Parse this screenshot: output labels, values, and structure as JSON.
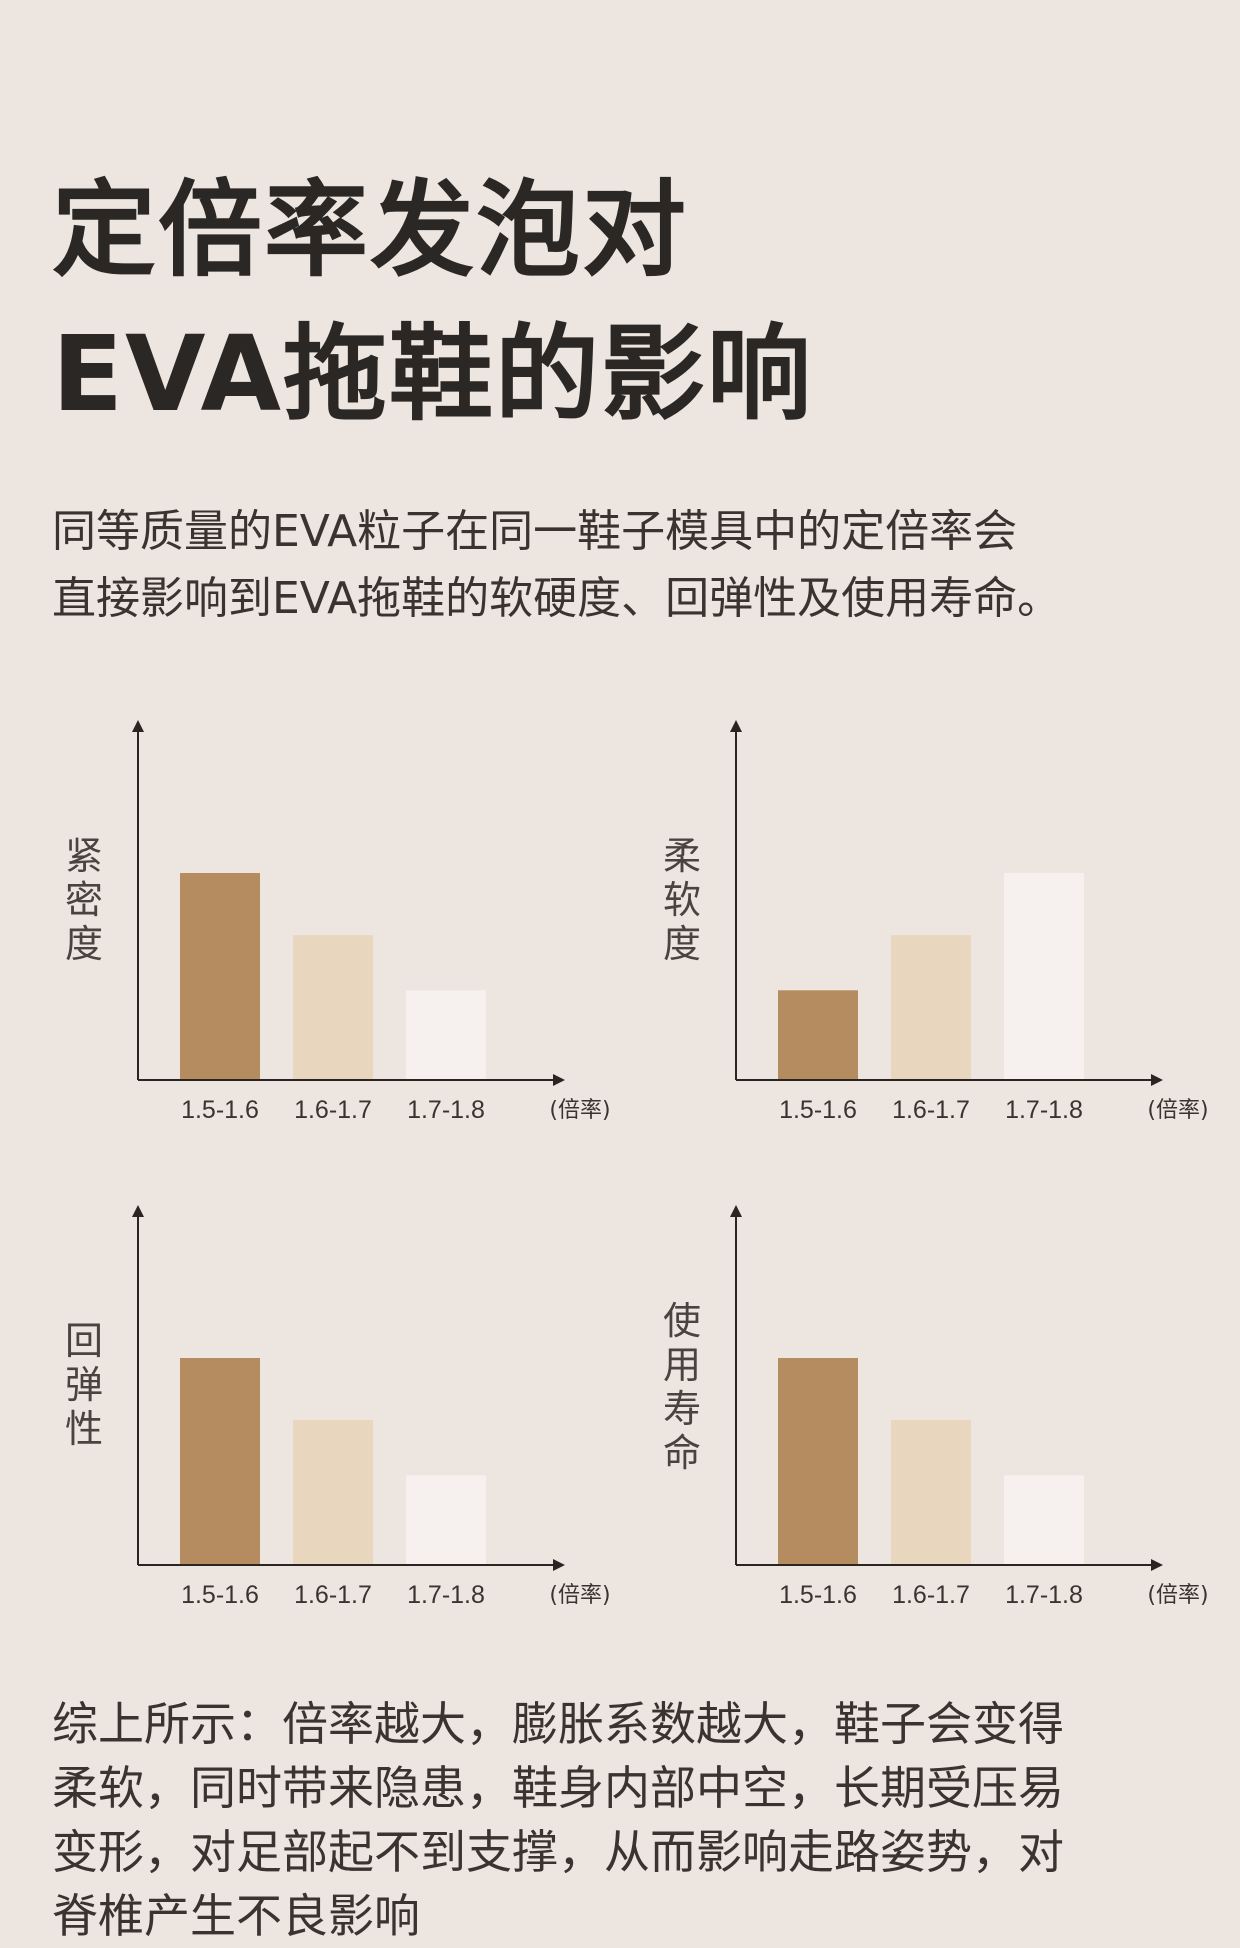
{
  "title": {
    "line1": "定倍率发泡对",
    "line2": "EVA拖鞋的影响"
  },
  "intro": {
    "line1": "同等质量的EVA粒子在同一鞋子模具中的定倍率会",
    "line2": "直接影响到EVA拖鞋的软硬度、回弹性及使用寿命。"
  },
  "colors": {
    "background": "#ede5df",
    "bar1": "#b58b60",
    "bar2": "#e9d6be",
    "bar3": "#f6f1ee",
    "axis": "#2a2522"
  },
  "chart_data": [
    {
      "type": "bar",
      "ylabel": "紧密度",
      "xlabel": "(倍率)",
      "categories": [
        "1.5-1.6",
        "1.6-1.7",
        "1.7-1.8"
      ],
      "values": [
        3,
        2.1,
        1.3
      ],
      "ylim": [
        0,
        5
      ]
    },
    {
      "type": "bar",
      "ylabel": "柔软度",
      "xlabel": "(倍率)",
      "categories": [
        "1.5-1.6",
        "1.6-1.7",
        "1.7-1.8"
      ],
      "values": [
        1.3,
        2.1,
        3
      ],
      "ylim": [
        0,
        5
      ]
    },
    {
      "type": "bar",
      "ylabel": "回弹性",
      "xlabel": "(倍率)",
      "categories": [
        "1.5-1.6",
        "1.6-1.7",
        "1.7-1.8"
      ],
      "values": [
        3,
        2.1,
        1.3
      ],
      "ylim": [
        0,
        5
      ]
    },
    {
      "type": "bar",
      "ylabel": "使用寿命",
      "xlabel": "(倍率)",
      "categories": [
        "1.5-1.6",
        "1.6-1.7",
        "1.7-1.8"
      ],
      "values": [
        3,
        2.1,
        1.3
      ],
      "ylim": [
        0,
        5
      ]
    }
  ],
  "summary": {
    "line1": "综上所示：倍率越大，膨胀系数越大，鞋子会变得",
    "line2": "柔软，同时带来隐患，鞋身内部中空，长期受压易",
    "line3": "变形，对足部起不到支撑，从而影响走路姿势，对",
    "line4": "脊椎产生不良影响"
  }
}
